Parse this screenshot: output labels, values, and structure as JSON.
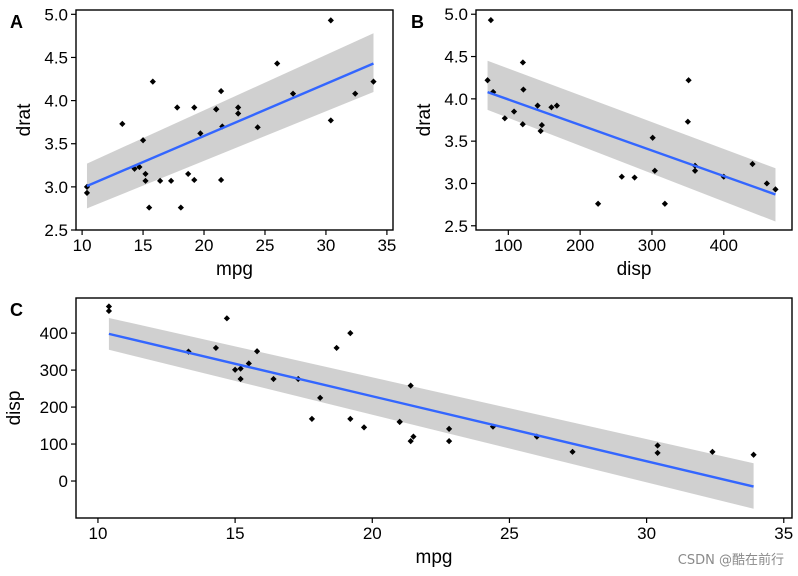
{
  "watermark": "CSDN @酷在前行",
  "colors": {
    "line": "#3366FF",
    "ribbon": "#C8C8C8",
    "point": "#000000",
    "frame": "#000000"
  },
  "chart_data": [
    {
      "type": "scatter",
      "tag": "A",
      "xlabel": "mpg",
      "ylabel": "drat",
      "xlim": [
        9.5,
        35.5
      ],
      "ylim": [
        2.5,
        5.05
      ],
      "xticks": [
        10,
        15,
        20,
        25,
        30,
        35
      ],
      "yticks": [
        2.5,
        3.0,
        3.5,
        4.0,
        4.5,
        5.0
      ],
      "ytick_labels": [
        "2.5",
        "3.0",
        "3.5",
        "4.0",
        "4.5",
        "5.0"
      ],
      "points": [
        [
          10.4,
          2.93
        ],
        [
          10.4,
          3.0
        ],
        [
          13.3,
          3.73
        ],
        [
          14.3,
          3.21
        ],
        [
          14.7,
          3.23
        ],
        [
          15.0,
          3.54
        ],
        [
          15.2,
          3.15
        ],
        [
          15.2,
          3.07
        ],
        [
          15.5,
          2.76
        ],
        [
          15.8,
          4.22
        ],
        [
          16.4,
          3.07
        ],
        [
          17.3,
          3.07
        ],
        [
          17.8,
          3.92
        ],
        [
          18.1,
          2.76
        ],
        [
          18.7,
          3.15
        ],
        [
          19.2,
          3.92
        ],
        [
          19.2,
          3.08
        ],
        [
          19.7,
          3.62
        ],
        [
          21.0,
          3.9
        ],
        [
          21.0,
          3.9
        ],
        [
          21.4,
          3.08
        ],
        [
          21.4,
          4.11
        ],
        [
          21.5,
          3.7
        ],
        [
          22.8,
          3.85
        ],
        [
          22.8,
          3.92
        ],
        [
          24.4,
          3.69
        ],
        [
          26.0,
          4.43
        ],
        [
          27.3,
          4.08
        ],
        [
          30.4,
          4.93
        ],
        [
          30.4,
          3.77
        ],
        [
          32.4,
          4.08
        ],
        [
          33.9,
          4.22
        ]
      ],
      "fit": {
        "x": [
          10.4,
          33.9
        ],
        "y": [
          3.01,
          4.43
        ],
        "lower": [
          2.75,
          4.1
        ],
        "upper": [
          3.27,
          4.78
        ]
      }
    },
    {
      "type": "scatter",
      "tag": "B",
      "xlabel": "disp",
      "ylabel": "drat",
      "xlim": [
        55,
        495
      ],
      "ylim": [
        2.45,
        5.05
      ],
      "xticks": [
        100,
        200,
        300,
        400
      ],
      "yticks": [
        2.5,
        3.0,
        3.5,
        4.0,
        4.5,
        5.0
      ],
      "ytick_labels": [
        "2.5",
        "3.0",
        "3.5",
        "4.0",
        "4.5",
        "5.0"
      ],
      "points": [
        [
          71.1,
          4.22
        ],
        [
          75.7,
          4.93
        ],
        [
          78.7,
          4.08
        ],
        [
          79.0,
          4.08
        ],
        [
          95.1,
          3.77
        ],
        [
          108.0,
          3.85
        ],
        [
          120.1,
          3.7
        ],
        [
          120.3,
          4.43
        ],
        [
          121.0,
          4.11
        ],
        [
          140.8,
          3.92
        ],
        [
          145.0,
          3.62
        ],
        [
          146.7,
          3.69
        ],
        [
          160.0,
          3.9
        ],
        [
          167.6,
          3.92
        ],
        [
          225.0,
          2.76
        ],
        [
          258.0,
          3.08
        ],
        [
          275.8,
          3.07
        ],
        [
          301.0,
          3.54
        ],
        [
          304.0,
          3.15
        ],
        [
          318.0,
          2.76
        ],
        [
          350.0,
          3.73
        ],
        [
          351.0,
          4.22
        ],
        [
          360.0,
          3.21
        ],
        [
          360.0,
          3.15
        ],
        [
          400.0,
          3.08
        ],
        [
          440.0,
          3.23
        ],
        [
          460.0,
          3.0
        ],
        [
          472.0,
          2.93
        ]
      ],
      "fit": {
        "x": [
          71.1,
          472.0
        ],
        "y": [
          4.08,
          2.87
        ],
        "lower": [
          3.87,
          2.55
        ],
        "upper": [
          4.45,
          3.18
        ]
      }
    },
    {
      "type": "scatter",
      "tag": "C",
      "xlabel": "mpg",
      "ylabel": "disp",
      "xlim": [
        9.2,
        35.3
      ],
      "ylim": [
        -100,
        495
      ],
      "xticks": [
        10,
        15,
        20,
        25,
        30,
        35
      ],
      "yticks": [
        0,
        100,
        200,
        300,
        400
      ],
      "ytick_labels": [
        "0",
        "100",
        "200",
        "300",
        "400"
      ],
      "points": [
        [
          10.4,
          472
        ],
        [
          10.4,
          460
        ],
        [
          13.3,
          350
        ],
        [
          14.3,
          360
        ],
        [
          14.7,
          440
        ],
        [
          15.0,
          301
        ],
        [
          15.2,
          304
        ],
        [
          15.2,
          276
        ],
        [
          15.5,
          318
        ],
        [
          15.8,
          351
        ],
        [
          16.4,
          276
        ],
        [
          17.3,
          276
        ],
        [
          17.8,
          168
        ],
        [
          18.1,
          225
        ],
        [
          18.7,
          360
        ],
        [
          19.2,
          400
        ],
        [
          19.2,
          168
        ],
        [
          19.7,
          145
        ],
        [
          21.0,
          160
        ],
        [
          21.0,
          160
        ],
        [
          21.4,
          108
        ],
        [
          21.4,
          258
        ],
        [
          21.5,
          120
        ],
        [
          22.8,
          108
        ],
        [
          22.8,
          141
        ],
        [
          24.4,
          147
        ],
        [
          26.0,
          120
        ],
        [
          27.3,
          79
        ],
        [
          30.4,
          76
        ],
        [
          30.4,
          96
        ],
        [
          32.4,
          79
        ],
        [
          33.9,
          71
        ]
      ],
      "fit": {
        "x": [
          10.4,
          33.9
        ],
        "y": [
          398,
          -15
        ],
        "lower": [
          355,
          -75
        ],
        "upper": [
          441,
          48
        ]
      }
    }
  ]
}
